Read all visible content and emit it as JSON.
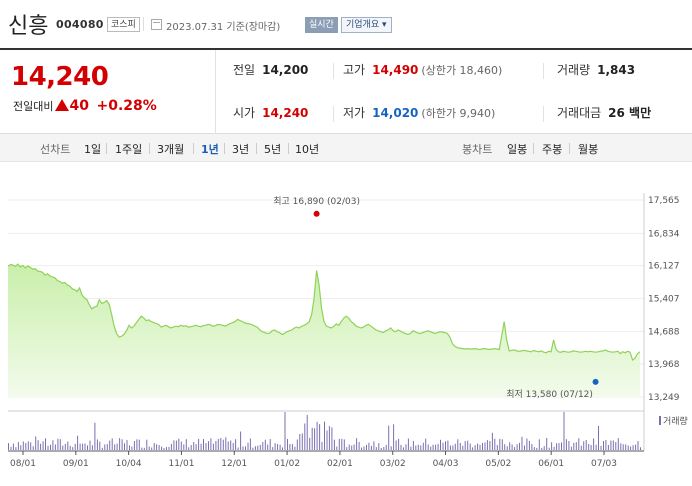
{
  "header": {
    "name": "신흥",
    "code": "004080",
    "market": "코스피",
    "date": "2023.07.31 기준(장마감)",
    "realtime_button": "실시간",
    "overview_button": "기업개요 ▾"
  },
  "quote": {
    "price": "14,240",
    "change_label": "전일대비",
    "change_value": "40",
    "change_pct": "+0.28%",
    "prev_close_label": "전일",
    "prev_close": "14,200",
    "open_label": "시가",
    "open": "14,240",
    "high_label": "고가",
    "high": "14,490",
    "upper_limit": "(상한가 18,460)",
    "low_label": "저가",
    "low": "14,020",
    "lower_limit": "(하한가 9,940)",
    "volume_label": "거래량",
    "volume": "1,843",
    "amount_label": "거래대금",
    "amount": "26 백만",
    "up_color": "#d20000",
    "down_color": "#1565c0"
  },
  "tabs": {
    "line_label": "선차트",
    "line_periods": [
      "1일",
      "1주일",
      "3개월",
      "1년",
      "3년",
      "5년",
      "10년"
    ],
    "selected_period": "1년",
    "candle_label": "봉차트",
    "candle_periods": [
      "일봉",
      "주봉",
      "월봉"
    ]
  },
  "chart_data": {
    "type": "area",
    "y_ticks": [
      "17,565",
      "16,834",
      "16,127",
      "15,407",
      "14,688",
      "13,968",
      "13,249"
    ],
    "y_tick_values": [
      17565,
      16834,
      16127,
      15407,
      14688,
      13968,
      13249
    ],
    "x_ticks": [
      "08/01",
      "09/01",
      "10/04",
      "11/01",
      "12/01",
      "01/02",
      "02/01",
      "03/02",
      "04/03",
      "05/02",
      "06/01",
      "07/03"
    ],
    "high_annotation": "최고 16,890 (02/03)",
    "high_value": 16890,
    "high_index": 125,
    "low_annotation": "최저 13,580 (07/12)",
    "low_value": 13580,
    "low_index": 238,
    "volume_label": "거래량",
    "line_color": "#8fd25a",
    "area_color": "#dff5cc",
    "high_dot_color": "#d20000",
    "low_dot_color": "#1565c0",
    "volume_color": "#7b6fb0",
    "prices": [
      16120,
      16150,
      16140,
      16110,
      16160,
      16100,
      16130,
      16080,
      16120,
      16090,
      16050,
      16060,
      16010,
      16000,
      15980,
      15920,
      15950,
      15900,
      15880,
      15860,
      15800,
      15780,
      15740,
      15760,
      15700,
      15680,
      15620,
      15600,
      15560,
      15640,
      15480,
      15420,
      15380,
      15260,
      15180,
      15220,
      15240,
      15380,
      15300,
      15320,
      15360,
      15280,
      15050,
      14800,
      14640,
      14560,
      14580,
      14620,
      14700,
      14820,
      14760,
      14800,
      14880,
      14950,
      15020,
      14980,
      14920,
      14940,
      14900,
      14880,
      14860,
      14840,
      14780,
      14800,
      14820,
      14790,
      14760,
      14780,
      14800,
      14790,
      14820,
      14800,
      14810,
      14780,
      14790,
      14800,
      14820,
      14800,
      14790,
      14810,
      14820,
      14840,
      14830,
      14800,
      14810,
      14840,
      14830,
      14820,
      14800,
      14830,
      14860,
      14880,
      14900,
      14950,
      14920,
      14900,
      14870,
      14860,
      14850,
      14830,
      14800,
      14780,
      14720,
      14680,
      14660,
      14640,
      14650,
      14700,
      14720,
      14680,
      14660,
      14620,
      14640,
      14680,
      14700,
      14720,
      14760,
      14780,
      14760,
      14800,
      14820,
      14850,
      14900,
      15060,
      15420,
      16020,
      15700,
      15200,
      14900,
      14800,
      14780,
      14760,
      14800,
      14850,
      14820,
      14900,
      14980,
      15020,
      14980,
      14900,
      14860,
      14800,
      14780,
      14760,
      14780,
      14820,
      14840,
      14800,
      14760,
      14720,
      14700,
      14680,
      14660,
      14700,
      14720,
      14760,
      14700,
      14680,
      14720,
      14690,
      14660,
      14640,
      14620,
      14640,
      14700,
      14680,
      14650,
      14640,
      14660,
      14680,
      14700,
      14680,
      14660,
      14640,
      14660,
      14680,
      14670,
      14660,
      14640,
      14560,
      14420,
      14360,
      14330,
      14320,
      14310,
      14300,
      14310,
      14300,
      14300,
      14310,
      14300,
      14290,
      14300,
      14310,
      14300,
      14290,
      14300,
      14310,
      14300,
      14290,
      14600,
      14900,
      14500,
      14260,
      14270,
      14280,
      14260,
      14250,
      14260,
      14270,
      14260,
      14250,
      14240,
      14270,
      14250,
      14240,
      14260,
      14230,
      14220,
      14250,
      14240,
      14500,
      14290,
      14240,
      14230,
      14250,
      14240,
      14230,
      14240,
      14260,
      14250,
      14240,
      14230,
      14240,
      14250,
      14240,
      14250,
      14240,
      14230,
      14240,
      14250,
      14260,
      14280,
      14250,
      14240,
      14230,
      14240,
      14250,
      14200,
      14240,
      14220,
      14250,
      14230,
      14060,
      14100,
      14200,
      14240
    ]
  }
}
